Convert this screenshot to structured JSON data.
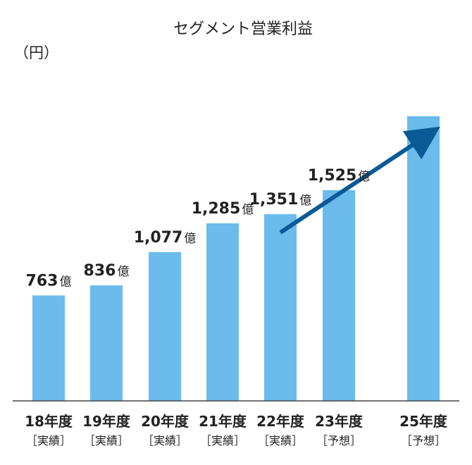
{
  "chart_data": {
    "type": "bar",
    "title": "セグメント営業利益",
    "unit_label": "（円）",
    "value_suffix": "億",
    "categories": [
      {
        "year": "18年度",
        "status": "［実績］"
      },
      {
        "year": "19年度",
        "status": "［実績］"
      },
      {
        "year": "20年度",
        "status": "［実績］"
      },
      {
        "year": "21年度",
        "status": "［実績］"
      },
      {
        "year": "22年度",
        "status": "［実績］"
      },
      {
        "year": "23年度",
        "status": "［予想］"
      },
      {
        "year": "25年度",
        "status": "［予想］"
      }
    ],
    "values": [
      763,
      836,
      1077,
      1285,
      1351,
      1525,
      null
    ],
    "value_labels": [
      "763",
      "836",
      "1,077",
      "1,285",
      "1,351",
      "1,525",
      ""
    ],
    "final_bar_estimate": 2060,
    "ylim": [
      0,
      2300
    ],
    "grid": false,
    "trend_arrow": {
      "from_category_index": 4,
      "to_category_index": 6
    }
  },
  "colors": {
    "bar": "#6bbcec",
    "arrow": "#0a5a96",
    "baseline": "#444444"
  }
}
